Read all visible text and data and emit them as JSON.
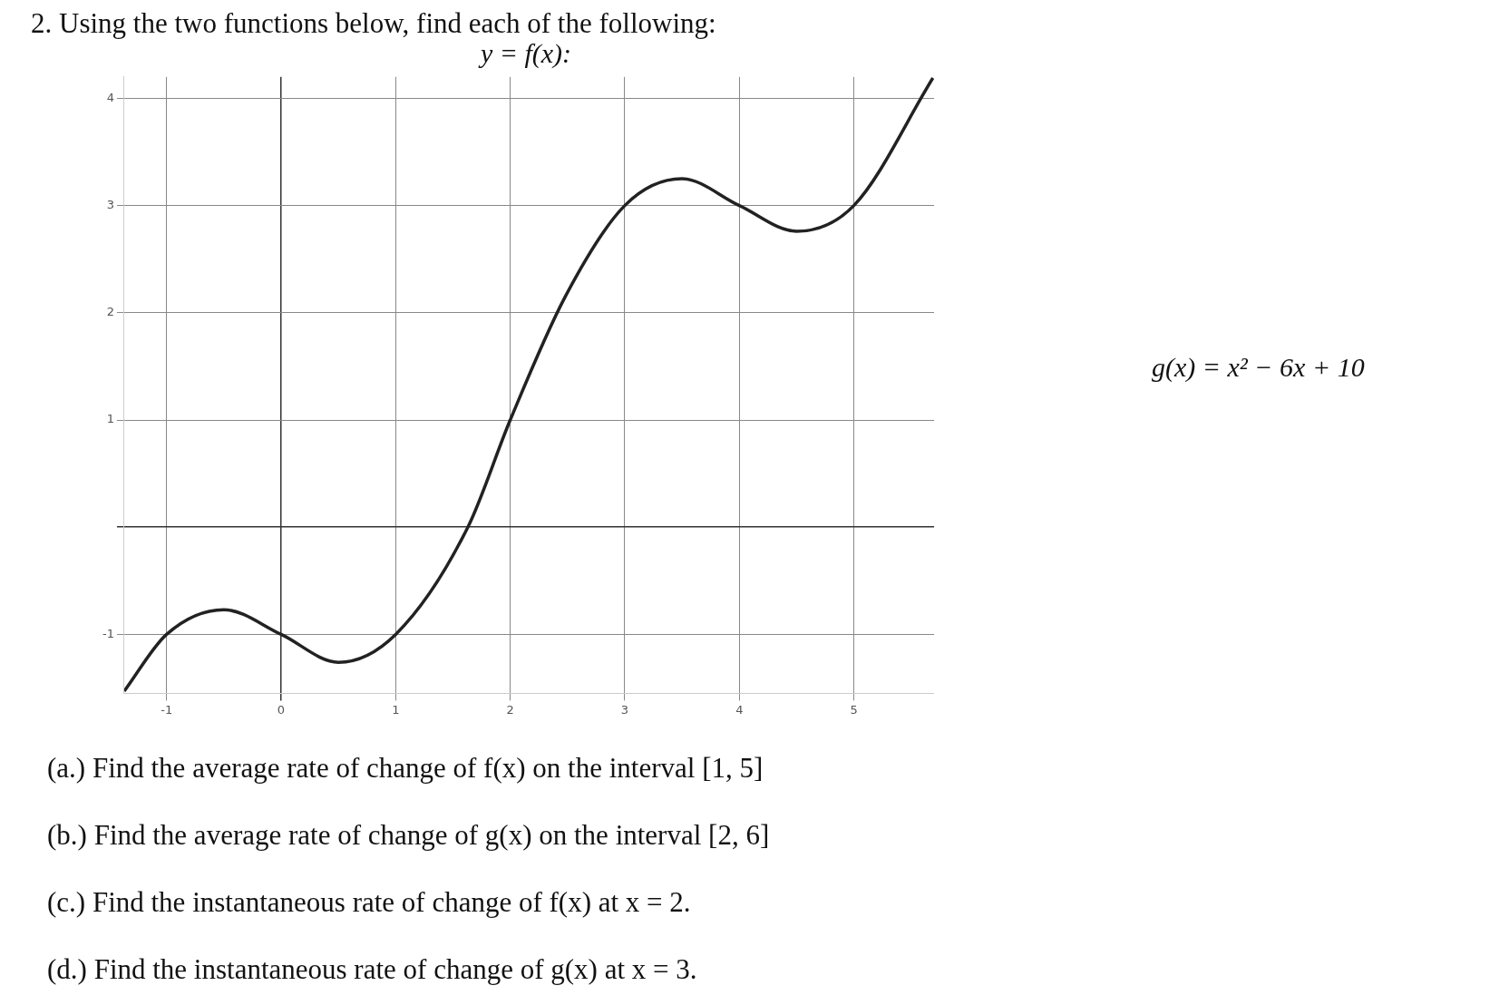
{
  "chart_data": {
    "type": "line",
    "title": "2. Using the two functions below, find each of the following:",
    "subtitle": "y = f(x):",
    "annotations": [
      "g(x) = x² − 6x + 10",
      "(a.) Find the average rate of change of f(x) on the interval [1, 5]",
      "(b.) Find the average rate of change of g(x) on the interval [2, 6]",
      "(c.) Find the instantaneous rate of change of f(x) at x = 2.",
      "(d.) Find the instantaneous rate of change of g(x) at x = 3."
    ],
    "x": [
      -1.37,
      -1,
      -0.5,
      0,
      0.5,
      1,
      1.63,
      2,
      2.48,
      3,
      3.5,
      4,
      4.5,
      5,
      5.69
    ],
    "series": [
      {
        "color": "#222222",
        "values": [
          -1.53,
          -1,
          -0.77,
          -1,
          -1.26,
          -1,
          0,
          1,
          2.15,
          3,
          3.25,
          3,
          2.76,
          3,
          4.19
        ]
      }
    ],
    "xlim": [
      -1.37,
      5.7
    ],
    "ylim": [
      -1.55,
      4.2
    ],
    "xticks": [
      -1,
      0,
      1,
      2,
      3,
      4,
      5
    ],
    "yticks": [
      -1,
      {
        "value": 0,
        "label": null
      },
      1,
      2,
      3,
      4
    ],
    "grid": true,
    "marker": "none",
    "line_style": "solid"
  }
}
